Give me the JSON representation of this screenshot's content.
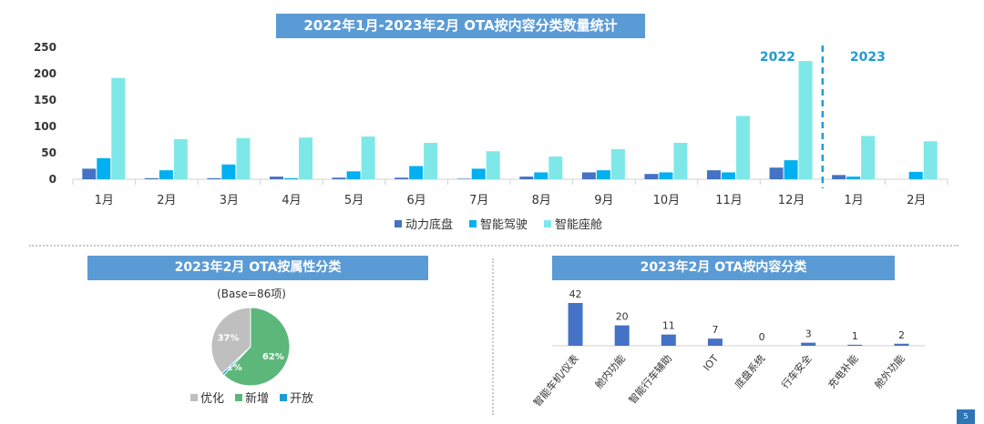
{
  "page_number": "5",
  "colors": {
    "accent": "#5b9bd5",
    "drive": "#4472c4",
    "smart": "#00b0f0",
    "cabin": "#7ee8e8",
    "pie_opt": "#bfbfbf",
    "pie_new": "#5cb77a",
    "pie_open": "#1f9bd6",
    "year_text": "#1f9bd6"
  },
  "chart_data": [
    {
      "id": "monthly",
      "type": "bar",
      "title": "2022年1月-2023年2月 OTA按内容分类数量统计",
      "categories": [
        "1月",
        "2月",
        "3月",
        "4月",
        "5月",
        "6月",
        "7月",
        "8月",
        "9月",
        "10月",
        "11月",
        "12月",
        "1月",
        "2月"
      ],
      "series": [
        {
          "name": "动力底盘",
          "values": [
            20,
            2,
            2,
            5,
            3,
            3,
            1,
            5,
            13,
            10,
            17,
            22,
            8,
            0
          ]
        },
        {
          "name": "智能驾驶",
          "values": [
            40,
            17,
            28,
            2,
            15,
            25,
            20,
            13,
            17,
            13,
            13,
            36,
            5,
            14
          ]
        },
        {
          "name": "智能座舱",
          "values": [
            192,
            76,
            78,
            79,
            81,
            69,
            53,
            43,
            57,
            69,
            120,
            224,
            82,
            72
          ]
        }
      ],
      "y_ticks": [
        "0",
        "50",
        "100",
        "150",
        "200",
        "250"
      ],
      "ylim": [
        0,
        250
      ],
      "year_labels": [
        "2022",
        "2023"
      ],
      "legend": [
        "动力底盘",
        "智能驾驶",
        "智能座舱"
      ]
    },
    {
      "id": "attribute-pie",
      "type": "pie",
      "title": "2023年2月 OTA按属性分类",
      "base_note": "(Base=86项)",
      "slices": [
        {
          "label": "优化",
          "value": 37,
          "text": "37%"
        },
        {
          "label": "新增",
          "value": 62,
          "text": "62%"
        },
        {
          "label": "开放",
          "value": 1,
          "text": "1%"
        }
      ]
    },
    {
      "id": "content",
      "type": "bar",
      "title": "2023年2月 OTA按内容分类",
      "categories": [
        "智能车机/仪表",
        "舱内功能",
        "智能行车辅助",
        "IOT",
        "底盘系统",
        "行车安全",
        "充电补能",
        "舱外功能"
      ],
      "values": [
        42,
        20,
        11,
        7,
        0,
        3,
        1,
        2
      ],
      "ylim": [
        0,
        45
      ]
    }
  ]
}
